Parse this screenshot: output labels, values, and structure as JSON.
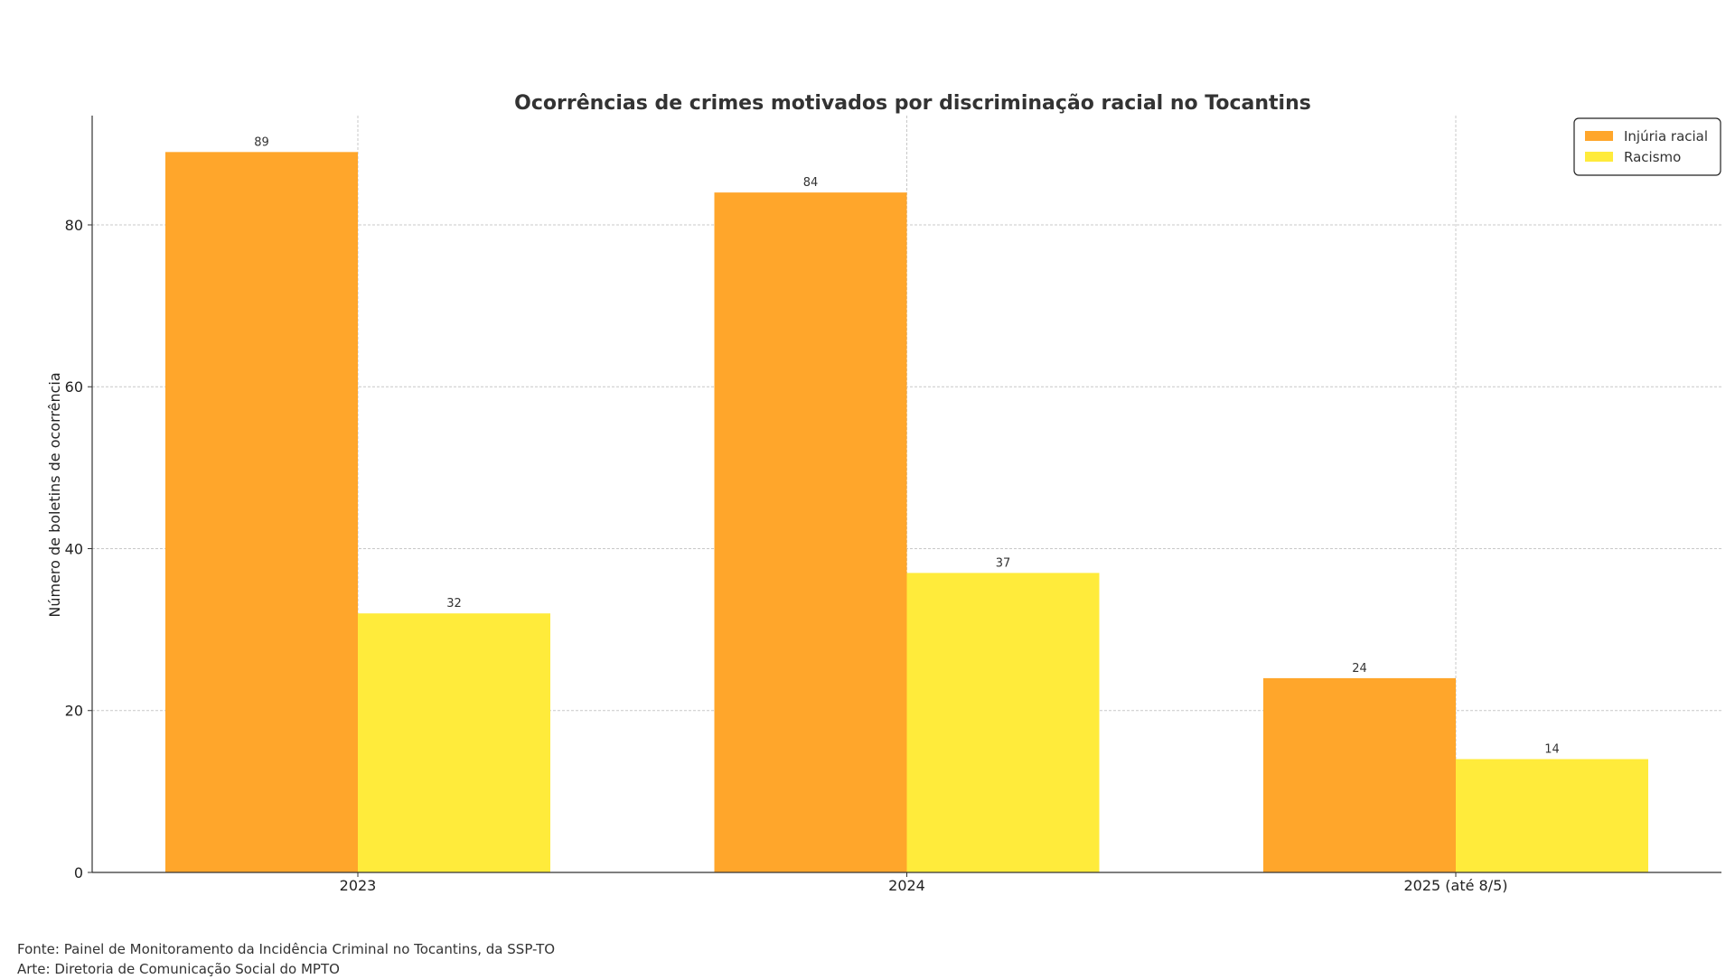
{
  "chart_data": {
    "type": "bar",
    "title": "Ocorrências de crimes motivados por discriminação racial no Tocantins",
    "xlabel": "",
    "ylabel": "Número de boletins de ocorrência",
    "categories": [
      "2023",
      "2024",
      "2025 (até 8/5)"
    ],
    "series": [
      {
        "name": "Injúria racial",
        "color": "#FFA62B",
        "values": [
          89,
          84,
          24
        ]
      },
      {
        "name": "Racismo",
        "color": "#FFEB3B",
        "values": [
          32,
          37,
          14
        ]
      }
    ],
    "ylim": [
      0,
      93.5
    ],
    "yticks": [
      0,
      20,
      40,
      60,
      80
    ],
    "grid": true,
    "legend_position": "top-right"
  },
  "footer": {
    "source": "Fonte: Painel de Monitoramento da Incidência Criminal no Tocantins, da SSP-TO",
    "art": "Arte: Diretoria de Comunicação Social do MPTO"
  }
}
